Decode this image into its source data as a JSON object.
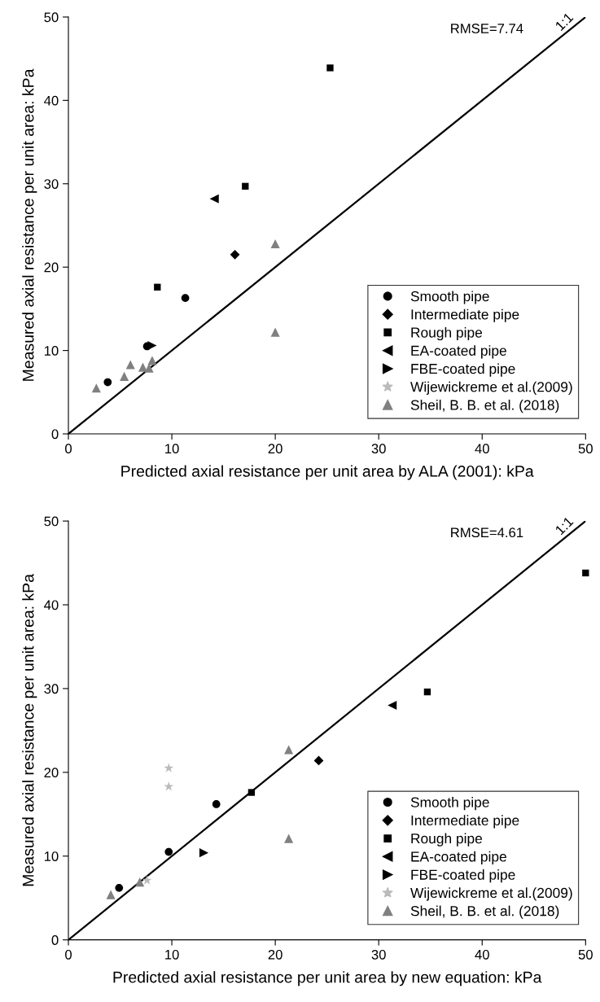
{
  "chart_data": [
    {
      "type": "scatter",
      "xlabel": "Predicted axial resistance per unit area by ALA (2001): kPa",
      "ylabel": "Measured axial resistance per unit area: kPa",
      "xlim": [
        0,
        50
      ],
      "ylim": [
        0,
        50
      ],
      "xticks": [
        0,
        10,
        20,
        30,
        40,
        50
      ],
      "yticks": [
        0,
        10,
        20,
        30,
        40,
        50
      ],
      "grid": false,
      "legend": "bottom right",
      "annotations": [
        "RMSE=7.74",
        {
          "text": "1:1",
          "x": 48,
          "y": 48
        }
      ],
      "series": [
        {
          "name": "Smooth pipe",
          "color": "#000000",
          "marker": "circle",
          "x": [
            3.8,
            11.3,
            7.6
          ],
          "values": [
            6.2,
            16.3,
            10.5
          ]
        },
        {
          "name": "Intermediate pipe",
          "color": "#000000",
          "marker": "diamond",
          "x": [
            16.1
          ],
          "values": [
            21.5
          ]
        },
        {
          "name": "Rough pipe",
          "color": "#000000",
          "marker": "square",
          "x": [
            8.6,
            17.1,
            25.3
          ],
          "values": [
            17.6,
            29.7,
            43.9
          ]
        },
        {
          "name": "EA-coated pipe",
          "color": "#000000",
          "marker": "triangle-left",
          "x": [
            14.1
          ],
          "values": [
            28.2
          ]
        },
        {
          "name": "FBE-coated pipe",
          "color": "#000000",
          "marker": "triangle-right",
          "x": [
            8.1
          ],
          "values": [
            10.6
          ]
        },
        {
          "name": "Wijewickreme et al.(2009)",
          "color": "#bbbbbb",
          "marker": "star"
        },
        {
          "name": "Sheil, B. B. et al. (2018)",
          "color": "#808080",
          "marker": "triangle",
          "x": [
            2.7,
            5.4,
            6.0,
            7.2,
            7.8,
            8.1,
            20.0,
            20.0
          ],
          "values": [
            5.5,
            6.9,
            8.3,
            8.0,
            7.9,
            8.8,
            12.2,
            22.8
          ]
        },
        {
          "type": "line",
          "color": "#000000",
          "marker": "none",
          "x": [
            0,
            50
          ],
          "values": [
            0,
            50
          ]
        }
      ]
    },
    {
      "type": "scatter",
      "xlabel": "Predicted axial resistance per unit area by new equation: kPa",
      "ylabel": "Measured axial resistance per unit area: kPa",
      "xlim": [
        0,
        50
      ],
      "ylim": [
        0,
        50
      ],
      "xticks": [
        0,
        10,
        20,
        30,
        40,
        50
      ],
      "yticks": [
        0,
        10,
        20,
        30,
        40,
        50
      ],
      "grid": false,
      "legend": "bottom right",
      "annotations": [
        "RMSE=4.61",
        {
          "text": "1:1",
          "x": 48,
          "y": 48
        }
      ],
      "series": [
        {
          "name": "Smooth pipe",
          "color": "#000000",
          "marker": "circle",
          "x": [
            4.9,
            9.7,
            14.3
          ],
          "values": [
            6.2,
            10.5,
            16.2
          ]
        },
        {
          "name": "Intermediate pipe",
          "color": "#000000",
          "marker": "diamond",
          "x": [
            24.2
          ],
          "values": [
            21.4
          ]
        },
        {
          "name": "Rough pipe",
          "color": "#000000",
          "marker": "square",
          "x": [
            17.7,
            34.7,
            50
          ],
          "values": [
            17.6,
            29.6,
            43.8
          ]
        },
        {
          "name": "EA-coated pipe",
          "color": "#000000",
          "marker": "triangle-left",
          "x": [
            31.3
          ],
          "values": [
            28.0
          ]
        },
        {
          "name": "FBE-coated pipe",
          "color": "#000000",
          "marker": "triangle-right",
          "x": [
            13.1
          ],
          "values": [
            10.4
          ]
        },
        {
          "name": "Wijewickreme et al.(2009)",
          "color": "#bbbbbb",
          "marker": "star",
          "x": [
            9.7,
            9.7,
            7.6
          ],
          "values": [
            20.5,
            18.3,
            7.1
          ]
        },
        {
          "name": "Sheil, B. B. et al. (2018)",
          "color": "#808080",
          "marker": "triangle",
          "x": [
            4.1,
            6.9,
            21.3,
            21.3
          ],
          "values": [
            5.4,
            6.9,
            22.7,
            12.1
          ]
        },
        {
          "type": "line",
          "color": "#000000",
          "marker": "none",
          "x": [
            0,
            50
          ],
          "values": [
            0,
            50
          ]
        }
      ]
    }
  ]
}
